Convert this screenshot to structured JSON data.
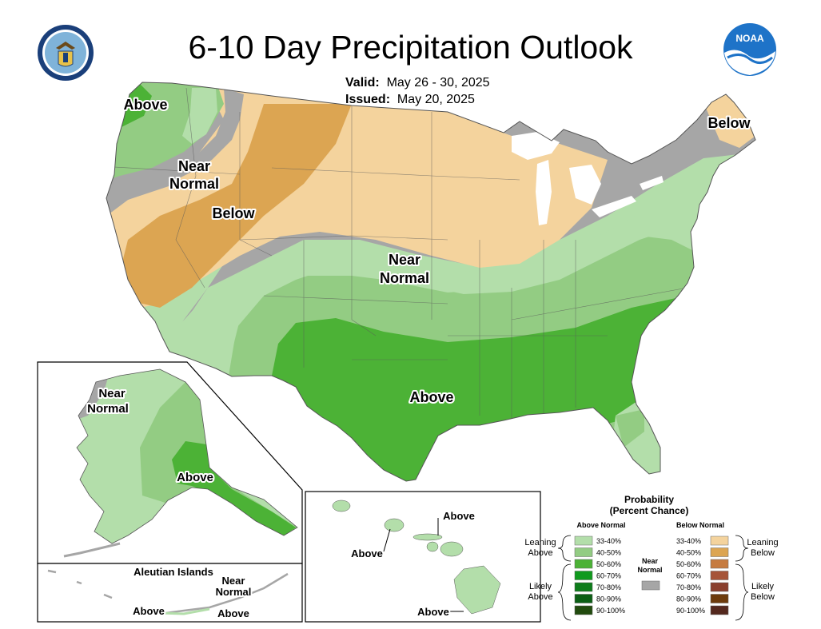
{
  "title": "6-10 Day Precipitation Outlook",
  "valid_label": "Valid:",
  "valid_value": "May 26 - 30, 2025",
  "issued_label": "Issued:",
  "issued_value": "May 20, 2025",
  "logos": {
    "left": "seal-icon",
    "right": "noaa-logo",
    "noaa_text": "NOAA"
  },
  "map_labels": {
    "above_nw": "Above",
    "near_normal_w_1": "Near",
    "near_normal_w_2": "Normal",
    "below_w": "Below",
    "near_normal_c_1": "Near",
    "near_normal_c_2": "Normal",
    "above_s": "Above",
    "below_ne": "Below"
  },
  "alaska_labels": {
    "near_1": "Near",
    "near_2": "Normal",
    "above": "Above"
  },
  "aleutian": {
    "title": "Aleutian Islands",
    "near_1": "Near",
    "near_2": "Normal",
    "above_1": "Above",
    "above_2": "Above"
  },
  "hawaii_labels": {
    "above_1": "Above",
    "above_2": "Above",
    "above_3": "Above"
  },
  "legend": {
    "title_1": "Probability",
    "title_2": "(Percent Chance)",
    "above_header": "Above Normal",
    "below_header": "Below Normal",
    "near_label_1": "Near",
    "near_label_2": "Normal",
    "leaning_above_1": "Leaning",
    "leaning_above_2": "Above",
    "likely_above_1": "Likely",
    "likely_above_2": "Above",
    "leaning_below_1": "Leaning",
    "leaning_below_2": "Below",
    "likely_below_1": "Likely",
    "likely_below_2": "Below",
    "above_ranges": [
      "33-40%",
      "40-50%",
      "50-60%",
      "60-70%",
      "70-80%",
      "80-90%",
      "90-100%"
    ],
    "below_ranges": [
      "33-40%",
      "40-50%",
      "50-60%",
      "60-70%",
      "70-80%",
      "80-90%",
      "90-100%"
    ],
    "above_colors": [
      "#b3deaa",
      "#93cc83",
      "#4cb236",
      "#109a1e",
      "#0d7c1a",
      "#0b5e14",
      "#214a0e"
    ],
    "below_colors": [
      "#f4d39d",
      "#dca552",
      "#c67b40",
      "#a65438",
      "#8a3f2d",
      "#6d3b0c",
      "#54281e"
    ],
    "near_color": "#a6a6a6"
  },
  "category_colors": {
    "above_33_40": "#b3deaa",
    "above_40_50": "#93cc83",
    "above_50_60": "#4cb236",
    "below_33_40": "#f4d39d",
    "below_40_50": "#dca552",
    "near_normal": "#a6a6a6",
    "water": "#ffffff"
  }
}
